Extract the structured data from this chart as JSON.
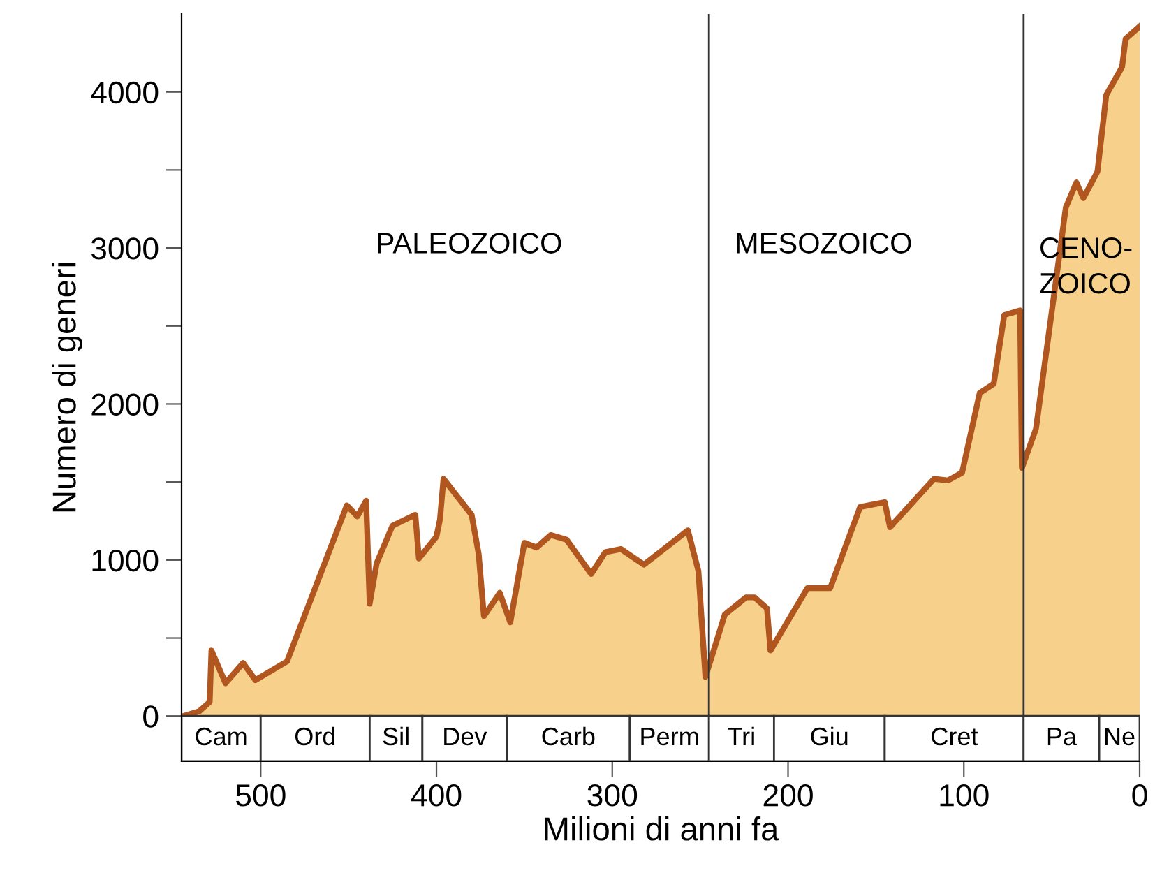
{
  "chart_data": {
    "type": "area",
    "xlabel": "Milioni di anni fa",
    "ylabel": "Numero di generi",
    "x": [
      544,
      535,
      529,
      528,
      520,
      510,
      503,
      485,
      451,
      445,
      440,
      438,
      434,
      425,
      412,
      410,
      400,
      398,
      396,
      380,
      376,
      373,
      364,
      358,
      350,
      343,
      335,
      326,
      312,
      304,
      295,
      282,
      257,
      251,
      247,
      236,
      224,
      219,
      212,
      210,
      189,
      176,
      159,
      145,
      142,
      117,
      109,
      101,
      91,
      83,
      77,
      68,
      67,
      59,
      42,
      36,
      32,
      24,
      19,
      10,
      8,
      0
    ],
    "series": [
      {
        "color": "#b0561e",
        "values": [
          0,
          30,
          90,
          420,
          210,
          340,
          230,
          350,
          1350,
          1280,
          1380,
          720,
          980,
          1220,
          1290,
          1010,
          1150,
          1260,
          1520,
          1290,
          1040,
          640,
          790,
          600,
          1110,
          1080,
          1160,
          1130,
          910,
          1050,
          1070,
          970,
          1190,
          930,
          250,
          650,
          760,
          760,
          690,
          420,
          820,
          820,
          1340,
          1370,
          1210,
          1520,
          1510,
          1560,
          2070,
          2130,
          2570,
          2600,
          1590,
          1840,
          3260,
          3420,
          3320,
          3490,
          3980,
          4160,
          4340,
          4420
        ]
      }
    ],
    "xlim": [
      545,
      0
    ],
    "ylim": [
      -290,
      4500
    ],
    "xticks": [
      500,
      400,
      300,
      200,
      100,
      0
    ],
    "yticks": [
      0,
      {
        "value": 500,
        "label": null
      },
      1000,
      {
        "value": 1500,
        "label": null
      },
      2000,
      {
        "value": 2500,
        "label": null
      },
      3000,
      {
        "value": 3500,
        "label": null
      },
      4000
    ],
    "ref_lines": [
      {
        "axis": "x",
        "value": 245,
        "color": "#333333"
      },
      {
        "axis": "x",
        "value": 66,
        "color": "#333333"
      }
    ],
    "bands": [
      {
        "axis": "x",
        "from": 545,
        "to": 500,
        "label": "Cam"
      },
      {
        "axis": "x",
        "from": 500,
        "to": 438,
        "label": "Ord"
      },
      {
        "axis": "x",
        "from": 438,
        "to": 408,
        "label": "Sil"
      },
      {
        "axis": "x",
        "from": 408,
        "to": 360,
        "label": "Dev"
      },
      {
        "axis": "x",
        "from": 360,
        "to": 290,
        "label": "Carb"
      },
      {
        "axis": "x",
        "from": 290,
        "to": 245,
        "label": "Perm"
      },
      {
        "axis": "x",
        "from": 245,
        "to": 208,
        "label": "Tri"
      },
      {
        "axis": "x",
        "from": 208,
        "to": 145,
        "label": "Giu"
      },
      {
        "axis": "x",
        "from": 145,
        "to": 66,
        "label": "Cret"
      },
      {
        "axis": "x",
        "from": 66,
        "to": 23,
        "label": "Pa"
      },
      {
        "axis": "x",
        "from": 23,
        "to": 0,
        "label": "Ne"
      }
    ],
    "annotations": [
      "PALEOZOICO",
      "MESOZOICO",
      "CENO-\nZOICO"
    ],
    "grid": false,
    "legend": false,
    "marker": "none",
    "line_style": "solid"
  }
}
